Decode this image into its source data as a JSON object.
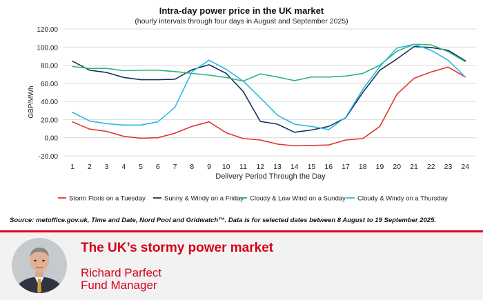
{
  "chart_data": {
    "type": "line",
    "title": "Intra-day power price in the UK market",
    "subtitle": "(hourly intervals through four days in August and September 2025)",
    "xlabel": "Delivery Period Through the Day",
    "ylabel": "GBP/MWh",
    "ylim": [
      -20,
      120
    ],
    "y_ticks": [
      "120.00",
      "100.00",
      "80.00",
      "60.00",
      "40.00",
      "20.00",
      "0.00",
      "-20.00"
    ],
    "x": [
      1,
      2,
      3,
      4,
      5,
      6,
      7,
      8,
      9,
      10,
      11,
      12,
      13,
      14,
      15,
      16,
      17,
      18,
      19,
      20,
      21,
      22,
      23,
      24
    ],
    "grid": "horizontal",
    "legend_position": "bottom",
    "series": [
      {
        "name": "Storm Floris on a Tuesday",
        "color": "#e5322b",
        "values": [
          17.5,
          9.5,
          7,
          1.5,
          -0.5,
          0,
          5,
          12.5,
          17.5,
          5.5,
          -1,
          -2.5,
          -7,
          -9,
          -8.5,
          -8,
          -2.5,
          -1,
          12.5,
          48,
          65.5,
          72.5,
          78,
          67
        ]
      },
      {
        "name": "Sunny & Windy on a Friday",
        "color": "#14325c",
        "values": [
          84.5,
          74.5,
          72,
          66.5,
          64,
          64,
          64.5,
          75,
          80.5,
          71,
          51,
          18,
          15,
          6,
          8.5,
          12.5,
          22,
          50,
          74.5,
          87,
          100.5,
          99.5,
          96.5,
          85
        ]
      },
      {
        "name": "Cloudy & Low Wind on a Sunday",
        "color": "#2db675",
        "values": [
          78.5,
          76.5,
          76.5,
          74,
          74.5,
          74.5,
          73,
          71,
          69,
          66.5,
          62.5,
          70.5,
          67,
          63,
          67,
          67,
          68,
          71,
          80,
          95.5,
          103,
          102.5,
          95,
          84
        ]
      },
      {
        "name": "Cloudy & Windy on a Thursday",
        "color": "#2bb8e0",
        "values": [
          28,
          18.5,
          15.5,
          14,
          14,
          17.5,
          33.5,
          73,
          85.5,
          75.5,
          62.5,
          44,
          25,
          15,
          12.5,
          9,
          22.5,
          53.5,
          78.5,
          99,
          103,
          96.5,
          85.5,
          67
        ]
      }
    ]
  },
  "source_note": "Source: metoffice.gov.uk, Time and Date, Nord Pool and Gridwatch™. Data is for selected dates between 8 August to 19 September 2025.",
  "banner": {
    "title": "The UK’s stormy power market",
    "person_name": "Richard Parfect",
    "person_role": "Fund Manager"
  },
  "colors": {
    "accent": "#e3001b",
    "banner_bg": "#f2f2f2"
  }
}
